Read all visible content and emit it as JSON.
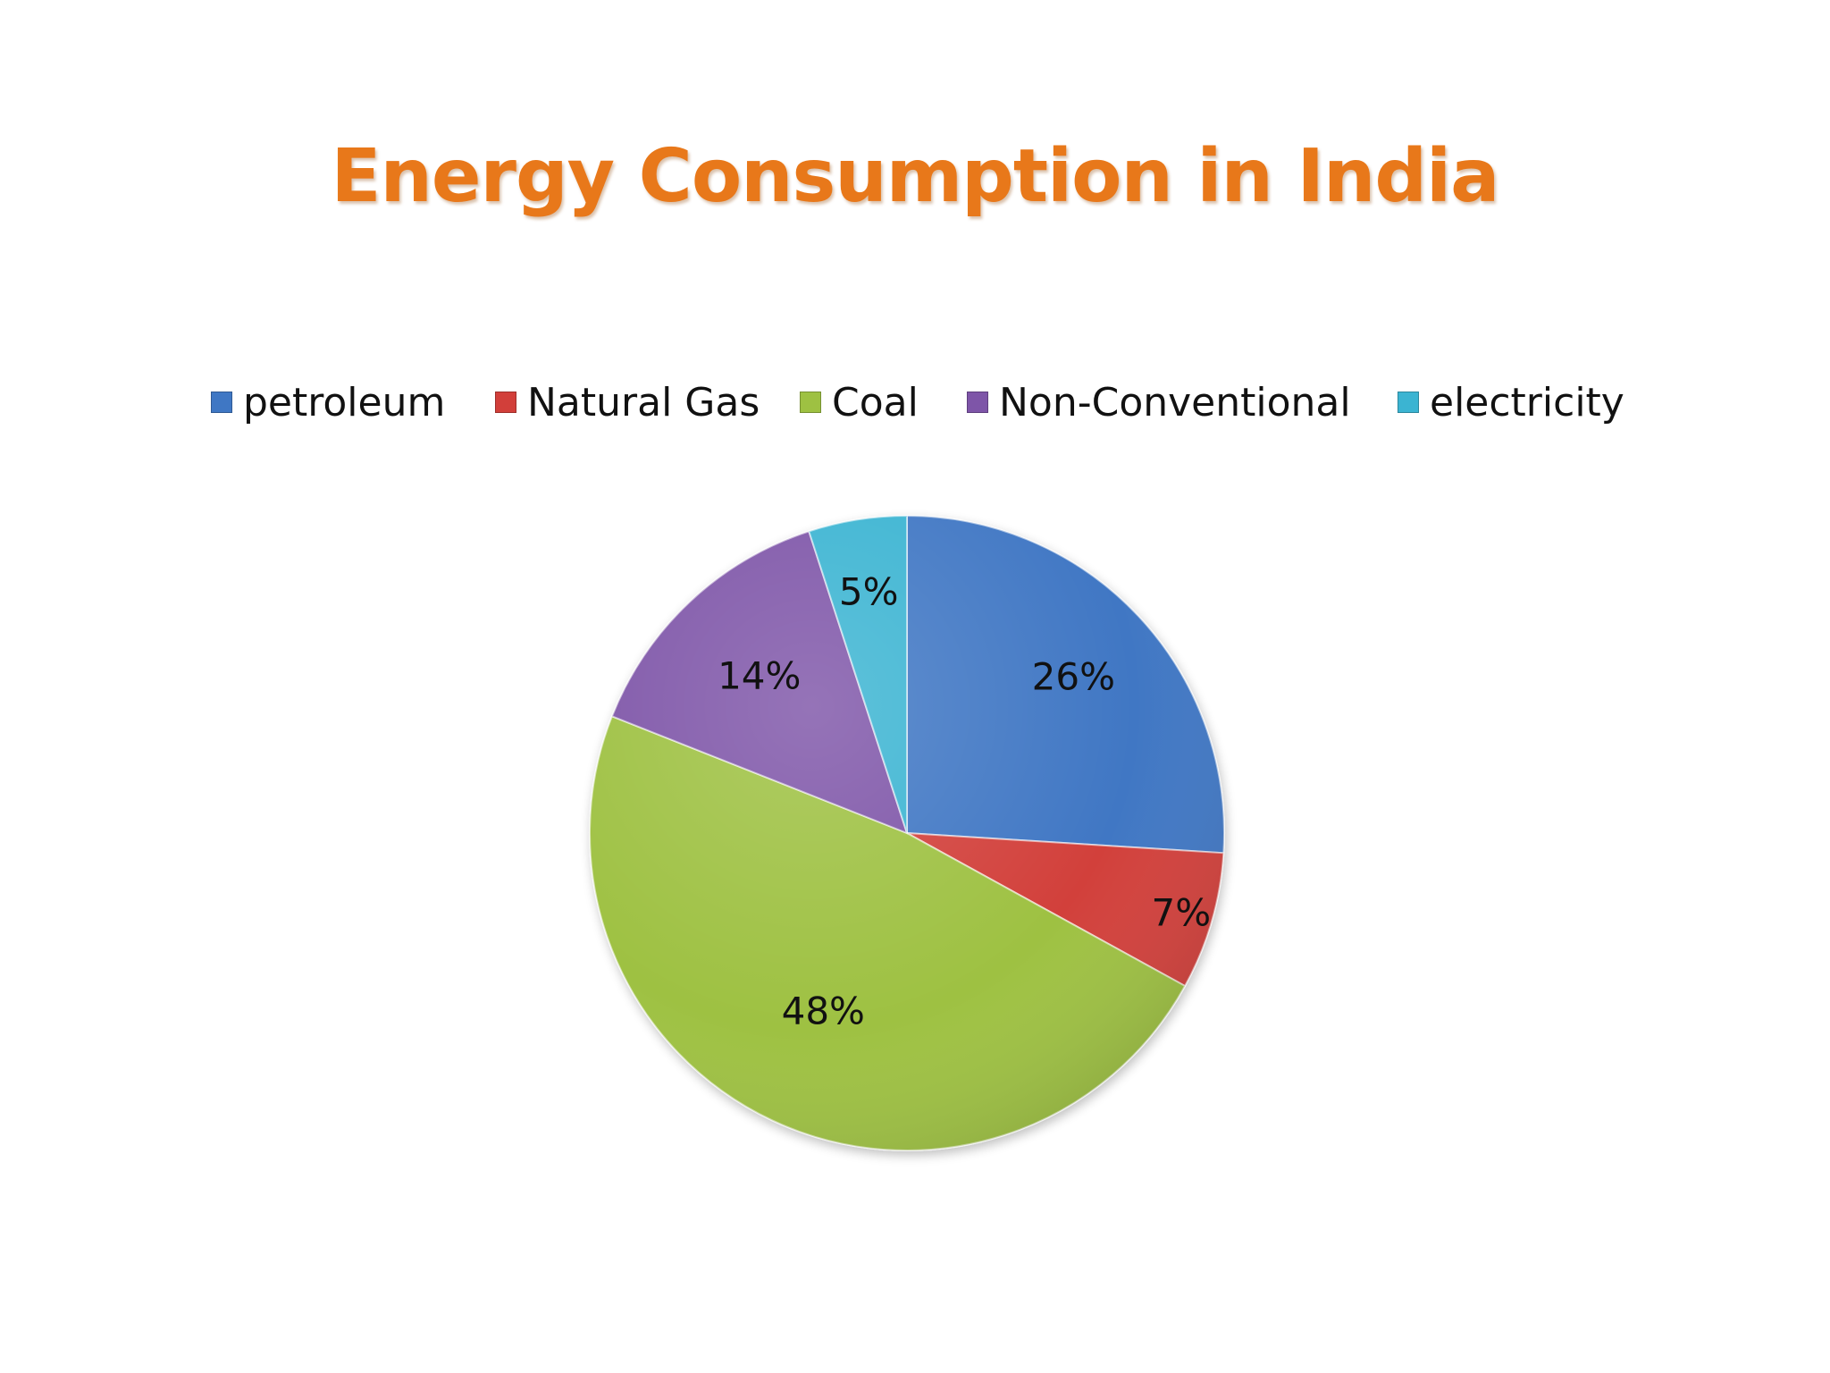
{
  "chart_data": {
    "type": "pie",
    "title": "Energy Consumption in India",
    "categories": [
      "petroleum",
      "Natural Gas",
      "Coal",
      "Non-Conventional",
      "electricity"
    ],
    "values": [
      26,
      7,
      48,
      14,
      5
    ],
    "data_labels": [
      "26%",
      "7%",
      "48%",
      "14%",
      "5%"
    ],
    "colors": [
      "#3f77c4",
      "#d23f3a",
      "#9ec142",
      "#7e55a8",
      "#3bb4d2"
    ],
    "legend_position": "top"
  }
}
